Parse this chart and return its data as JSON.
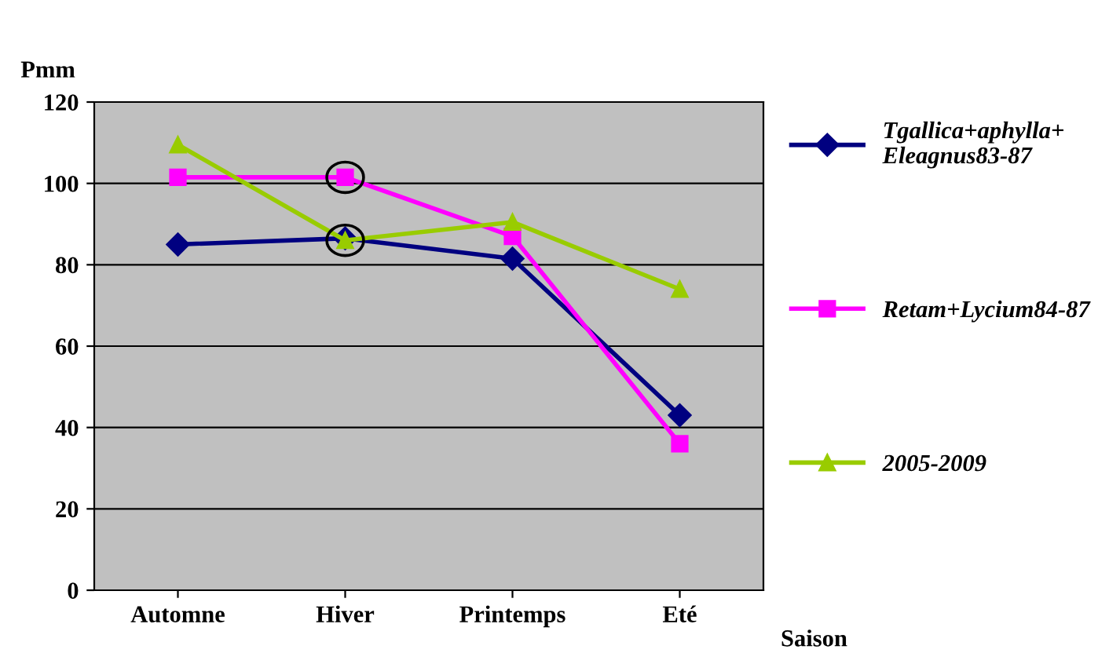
{
  "chart_data": {
    "type": "line",
    "xlabel": "Saison",
    "ylabel": "Pmm",
    "categories": [
      "Automne",
      "Hiver",
      "Printemps",
      "Eté"
    ],
    "series": [
      {
        "name": "Tgallica+aphylla+\nEleagnus83-87",
        "color": "#000080",
        "marker": "diamond",
        "values": [
          85,
          86.5,
          81.5,
          43
        ]
      },
      {
        "name": "Retam+Lycium84-87",
        "color": "#ff00ff",
        "marker": "square",
        "values": [
          101.5,
          101.5,
          87,
          36
        ]
      },
      {
        "name": "2005-2009",
        "color": "#99cc00",
        "marker": "triangle",
        "values": [
          109.5,
          86,
          90.5,
          74
        ]
      }
    ],
    "ylim": [
      0,
      120
    ],
    "yticks": [
      0,
      20,
      40,
      60,
      80,
      100,
      120
    ],
    "grid": "y",
    "legend": "right"
  }
}
